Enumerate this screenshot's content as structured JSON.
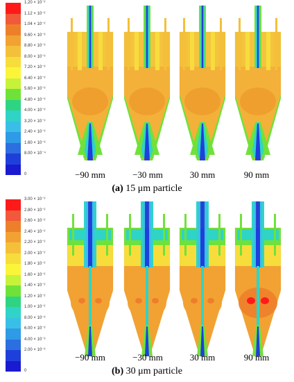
{
  "panel_a": {
    "legend_labels": [
      "1.20 × 10⁻²",
      "1.12 × 10⁻²",
      "1.04 × 10⁻²",
      "9.60 × 10⁻³",
      "8.80 × 10⁻³",
      "8.00 × 10⁻³",
      "7.20 × 10⁻³",
      "6.40 × 10⁻³",
      "5.60 × 10⁻³",
      "4.80 × 10⁻³",
      "4.00 × 10⁻³",
      "3.20 × 10⁻³",
      "2.40 × 10⁻³",
      "1.60 × 10⁻³",
      "8.00 × 10⁻⁴",
      "0"
    ],
    "legend_colors": [
      "#ff1a1a",
      "#f2583a",
      "#ee7f2a",
      "#f2a232",
      "#f4c03a",
      "#f7dd3c",
      "#fbf53a",
      "#c6f23a",
      "#6fe23a",
      "#2fd483",
      "#2fd4c6",
      "#39bfe7",
      "#2f9ae6",
      "#2c6fe0",
      "#1f3fdb",
      "#1a1ad0"
    ],
    "positions": [
      "−90 mm",
      "−30 mm",
      "30 mm",
      "90 mm"
    ],
    "caption_letter": "(a)",
    "caption_text": " 15 μm particle"
  },
  "panel_b": {
    "legend_labels": [
      "3.00 × 10⁻²",
      "2.80 × 10⁻²",
      "2.60 × 10⁻²",
      "2.40 × 10⁻²",
      "2.20 × 10⁻²",
      "2.00 × 10⁻²",
      "1.80 × 10⁻²",
      "1.60 × 10⁻²",
      "1.40 × 10⁻²",
      "1.20 × 10⁻²",
      "1.00 × 10⁻²",
      "8.00 × 10⁻³",
      "6.00 × 10⁻³",
      "4.00 × 10⁻³",
      "2.00 × 10⁻³",
      "0"
    ],
    "legend_colors": [
      "#ff1a1a",
      "#f2583a",
      "#ee7f2a",
      "#f2a232",
      "#f4c03a",
      "#f7dd3c",
      "#fbf53a",
      "#c6f23a",
      "#6fe23a",
      "#2fd483",
      "#2fd4c6",
      "#39bfe7",
      "#2f9ae6",
      "#2c6fe0",
      "#1f3fdb",
      "#1a1ad0"
    ],
    "positions": [
      "−90 mm",
      "−30 mm",
      "30 mm",
      "90 mm"
    ],
    "caption_letter": "(b)",
    "caption_text": " 30 μm particle"
  }
}
